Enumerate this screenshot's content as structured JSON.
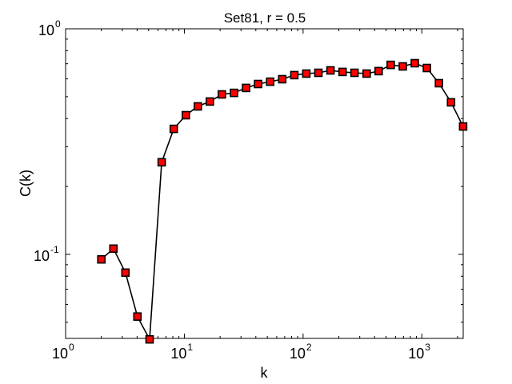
{
  "chart_data": {
    "type": "line",
    "title": "Set81, r = 0.5",
    "xlabel": "k",
    "ylabel": "C(k)",
    "xscale": "log",
    "yscale": "log",
    "xlim": [
      1,
      2230
    ],
    "ylim": [
      0.0424,
      1
    ],
    "grid": false,
    "legend": null,
    "x_ticks": [
      {
        "base": "10",
        "exp": "0",
        "value": 1
      },
      {
        "base": "10",
        "exp": "1",
        "value": 10
      },
      {
        "base": "10",
        "exp": "2",
        "value": 100
      },
      {
        "base": "10",
        "exp": "3",
        "value": 1000
      }
    ],
    "y_ticks": [
      {
        "base": "10",
        "exp": "-1",
        "value": 0.1
      },
      {
        "base": "10",
        "exp": "0",
        "value": 1
      }
    ],
    "series": [
      {
        "name": "C(k)",
        "line_color": "#000000",
        "marker": "square",
        "marker_face": "#ff0000",
        "marker_edge": "#000000",
        "x": [
          2,
          2.53,
          3.19,
          4.03,
          5.1,
          6.44,
          8.14,
          10.3,
          13.0,
          16.4,
          20.7,
          26.2,
          33.1,
          41.8,
          52.8,
          66.7,
          84.3,
          106.5,
          134.6,
          170,
          215,
          271,
          343,
          433,
          547,
          691,
          873,
          1103,
          1394,
          1761,
          2225
        ],
        "values": [
          0.095,
          0.106,
          0.083,
          0.053,
          0.042,
          0.256,
          0.36,
          0.414,
          0.453,
          0.476,
          0.512,
          0.52,
          0.547,
          0.569,
          0.583,
          0.598,
          0.623,
          0.633,
          0.638,
          0.654,
          0.644,
          0.638,
          0.633,
          0.649,
          0.692,
          0.681,
          0.704,
          0.67,
          0.574,
          0.472,
          0.369
        ]
      }
    ]
  }
}
